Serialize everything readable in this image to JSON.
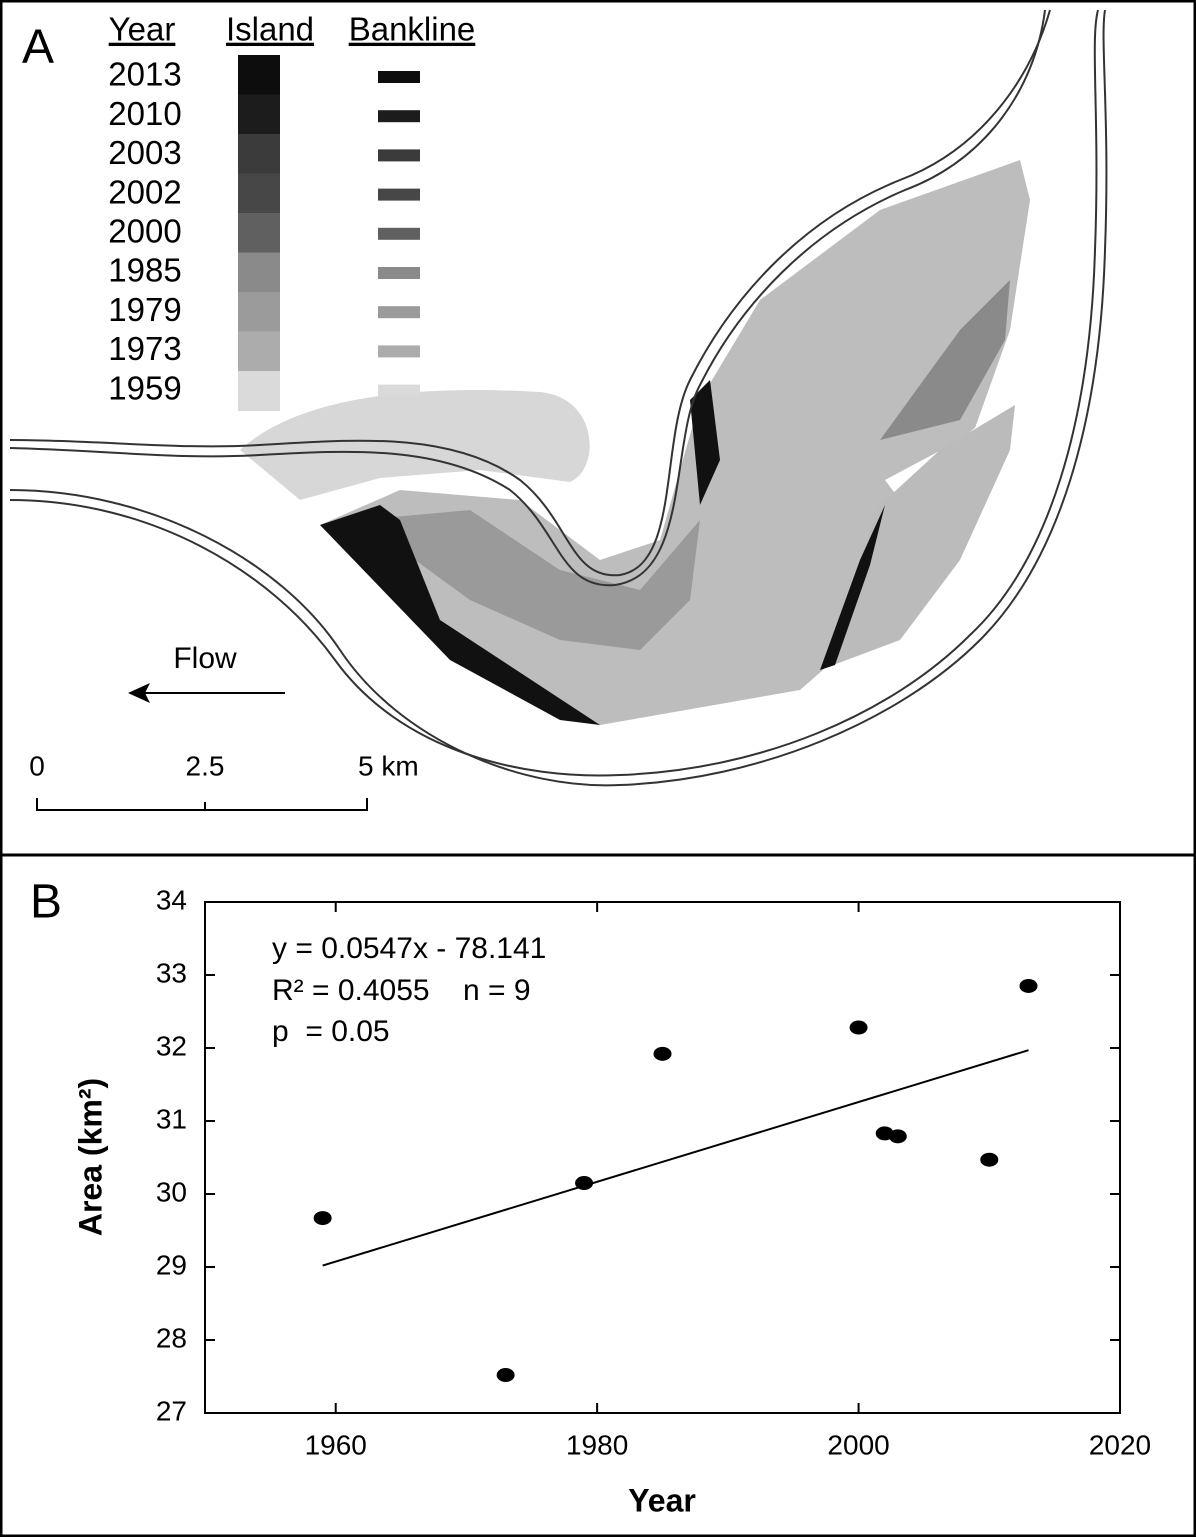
{
  "map": {
    "panel_label": "A",
    "legend": {
      "headers": [
        "Year",
        "Island",
        "Bankline"
      ],
      "years": [
        "2013",
        "2010",
        "2003",
        "2002",
        "2000",
        "1985",
        "1979",
        "1973",
        "1959"
      ],
      "colors": [
        "#0d0d0d",
        "#1c1c1c",
        "#3b3b3b",
        "#474747",
        "#606060",
        "#8a8a8a",
        "#9b9b9b",
        "#acacac",
        "#dadada"
      ]
    },
    "flow_label": "Flow",
    "scale_labels": [
      "0",
      "2.5",
      "5 km"
    ]
  },
  "chart_data": {
    "type": "scatter",
    "panel_label": "B",
    "x_label": "Year",
    "y_label": "Area (km²)",
    "annotations": [
      "y = 0.0547x - 78.141",
      "R² = 0.4055    n = 9",
      "p  = 0.05"
    ],
    "x": [
      1959,
      1973,
      1979,
      1985,
      2000,
      2002,
      2003,
      2010,
      2013
    ],
    "values": [
      29.67,
      27.52,
      30.15,
      31.92,
      32.28,
      30.83,
      30.79,
      30.47,
      32.85
    ],
    "color": "#000000",
    "trendline": {
      "x": [
        1959,
        2013
      ],
      "values": [
        29.02,
        31.97
      ]
    },
    "xlim": [
      1950,
      2020
    ],
    "xticks": [
      1960,
      1980,
      2000,
      2020
    ],
    "ylim": [
      27,
      34
    ],
    "yticks": [
      27,
      28,
      29,
      30,
      31,
      32,
      33,
      34
    ]
  }
}
